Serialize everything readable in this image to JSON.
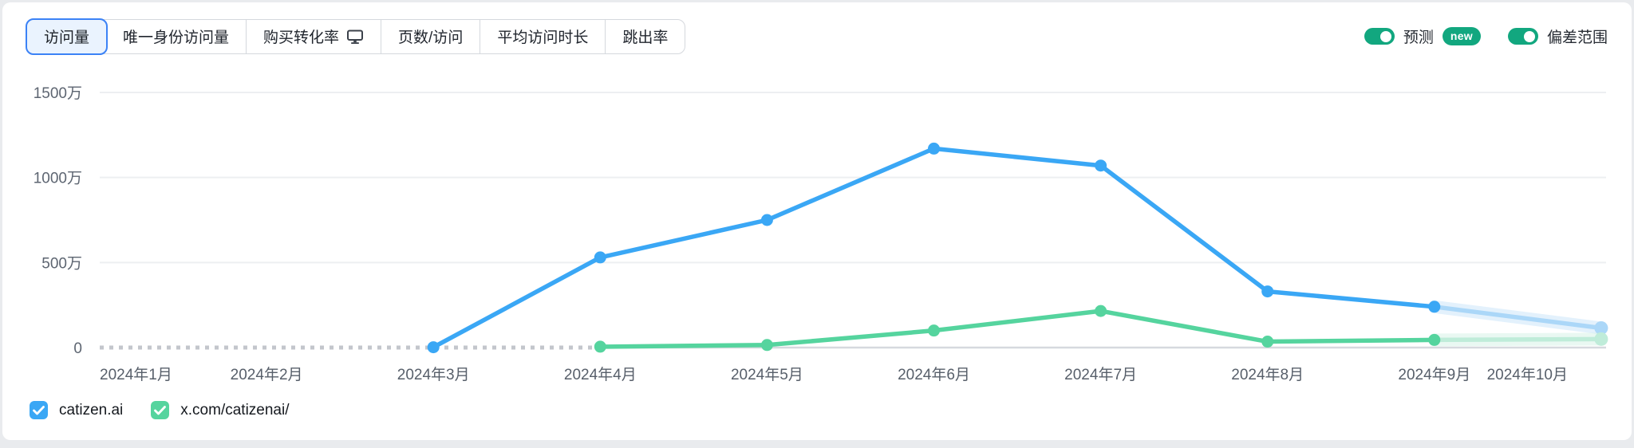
{
  "tabs": {
    "items": [
      {
        "label": "访问量",
        "selected": true
      },
      {
        "label": "唯一身份访问量",
        "selected": false
      },
      {
        "label": "购买转化率",
        "selected": false,
        "icon": "monitor-icon"
      },
      {
        "label": "页数/访问",
        "selected": false
      },
      {
        "label": "平均访问时长",
        "selected": false
      },
      {
        "label": "跳出率",
        "selected": false
      }
    ]
  },
  "controls": {
    "forecast_label": "预测",
    "forecast_badge": "new",
    "forecast_on": true,
    "deviation_label": "偏差范围",
    "deviation_on": true,
    "toggle_color": "#12a77f"
  },
  "legend": {
    "items": [
      {
        "label": "catizen.ai",
        "color": "#3aa7f5"
      },
      {
        "label": "x.com/catizenai/",
        "color": "#55d49e"
      }
    ]
  },
  "chart_data": {
    "type": "line",
    "title": "",
    "xlabel": "",
    "ylabel": "",
    "unit_note": "values in 万 (10,000 visits)",
    "x": [
      "2024年1月",
      "2024年2月",
      "2024年3月",
      "2024年4月",
      "2024年5月",
      "2024年6月",
      "2024年7月",
      "2024年8月",
      "2024年9月",
      "2024年10月"
    ],
    "y_ticks": [
      {
        "label": "1500万",
        "value_wan": 1500
      },
      {
        "label": "1000万",
        "value_wan": 1000
      },
      {
        "label": "500万",
        "value_wan": 500
      },
      {
        "label": "0",
        "value_wan": 0
      }
    ],
    "ylim_wan": [
      0,
      1500
    ],
    "grid": true,
    "legend_position": "bottom-left",
    "no_data_dash": {
      "from_index": 0,
      "to_index": 3,
      "at_value_wan": 0
    },
    "series": [
      {
        "name": "catizen.ai",
        "color": "#3aa7f5",
        "forecast_color": "#abd7f8",
        "values_wan": [
          null,
          null,
          2,
          530,
          750,
          1170,
          1070,
          330,
          240,
          null
        ],
        "forecast": {
          "from_index": 8,
          "values_wan": [
            240,
            115
          ]
        }
      },
      {
        "name": "x.com/catizenai/",
        "color": "#55d49e",
        "forecast_color": "#bfecd9",
        "values_wan": [
          null,
          null,
          null,
          5,
          15,
          100,
          215,
          35,
          45,
          null
        ],
        "forecast": {
          "from_index": 8,
          "values_wan": [
            45,
            50
          ]
        }
      }
    ]
  }
}
